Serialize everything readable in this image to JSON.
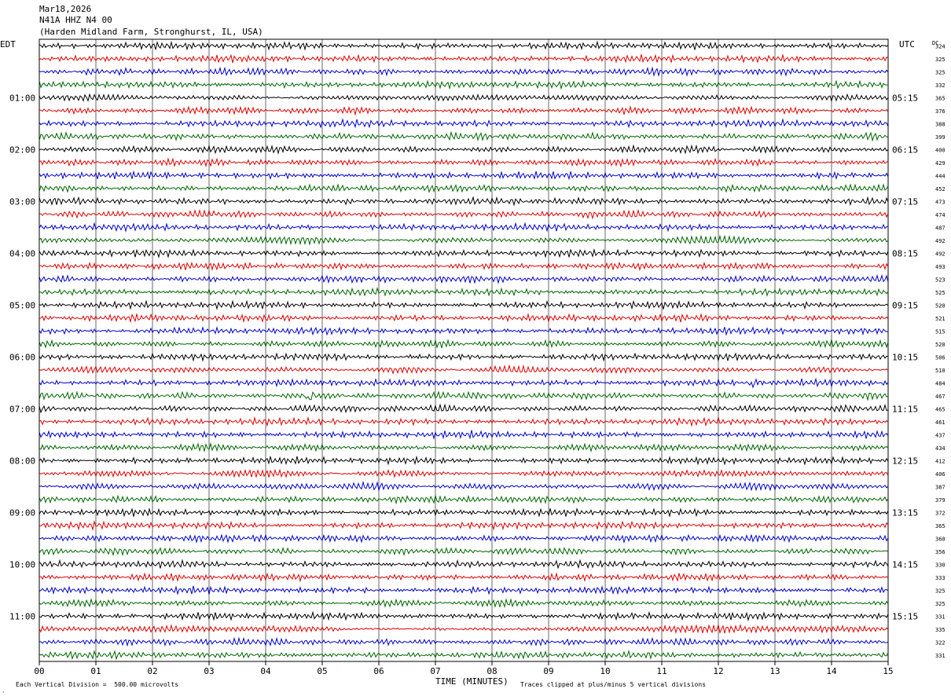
{
  "header": {
    "date": "Mar18,2026",
    "station": "N41A HHZ N4 00",
    "location": "(Harden Midland Farm, Stronghurst, IL, USA)"
  },
  "labels": {
    "left_timezone": "EDT",
    "right_timezone": "UTC",
    "dc_label": "DC",
    "x_axis_title": "TIME (MINUTES)",
    "footer_left": "Each Vertical Division =  500.00 microvolts",
    "footer_right": "Traces clipped at plus/minus 5 vertical divisions",
    "corner_mark": "¸"
  },
  "chart_data": {
    "type": "line",
    "title": "",
    "xlabel": "TIME (MINUTES)",
    "ylabel": "",
    "xlim": [
      0,
      15
    ],
    "x_ticks": [
      "00",
      "01",
      "02",
      "03",
      "04",
      "05",
      "06",
      "07",
      "08",
      "09",
      "10",
      "11",
      "12",
      "13",
      "14",
      "15"
    ],
    "left_hour_labels": [
      "01:00",
      "02:00",
      "03:00",
      "04:00",
      "05:00",
      "06:00",
      "07:00",
      "08:00",
      "09:00",
      "10:00",
      "11:00"
    ],
    "right_hour_labels": [
      "05:15",
      "06:15",
      "07:15",
      "08:15",
      "09:15",
      "10:15",
      "11:15",
      "12:15",
      "13:15",
      "14:15",
      "15:15"
    ],
    "trace_count": 48,
    "trace_minutes": 15,
    "trace_colors": [
      "#000000",
      "#e00000",
      "#0000cc",
      "#006600"
    ],
    "dc_offsets": [
      324,
      325,
      325,
      332,
      365,
      376,
      388,
      399,
      400,
      429,
      444,
      452,
      473,
      474,
      487,
      492,
      492,
      493,
      523,
      525,
      520,
      521,
      515,
      520,
      506,
      510,
      484,
      467,
      465,
      461,
      437,
      434,
      412,
      406,
      387,
      379,
      372,
      365,
      360,
      356,
      330,
      333,
      325,
      325,
      331,
      335,
      322,
      331
    ],
    "events": [
      {
        "trace": 27,
        "minute": 4.8,
        "description": "burst"
      },
      {
        "trace": 26,
        "minute": 12.6,
        "description": "spike"
      }
    ],
    "grid": true,
    "vertical_division_microvolts": 500.0,
    "clip_divisions": 5
  }
}
